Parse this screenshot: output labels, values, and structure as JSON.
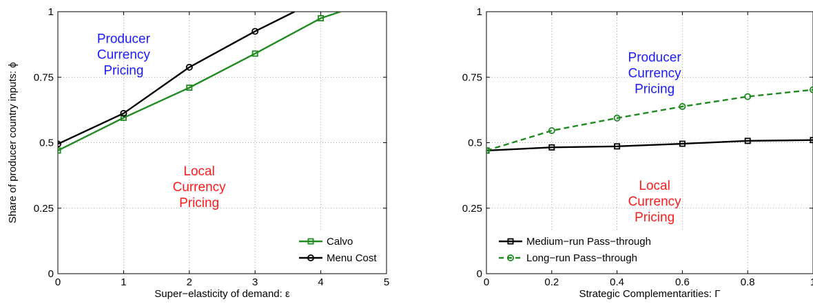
{
  "colors": {
    "green": "#1f8a1f",
    "black": "#000000",
    "blue": "#1a1aff",
    "red": "#ff1a1a",
    "grid": "#888888"
  },
  "chart_data": [
    {
      "type": "line",
      "xlabel": "Super−elasticity of demand: ε",
      "ylabel": "Share of producer country inputs:  ϕ",
      "xlim": [
        0,
        5
      ],
      "ylim": [
        0,
        1
      ],
      "xticks": [
        "0",
        "1",
        "2",
        "3",
        "4",
        "5"
      ],
      "yticks": [
        "0",
        "0.25",
        "0.5",
        "0.75",
        "1"
      ],
      "grid": "dotted",
      "legend_position": "bottom-right",
      "series": [
        {
          "name": "Calvo",
          "color": "green",
          "line": "solid",
          "marker": "square",
          "x": [
            0,
            1,
            2,
            3,
            4,
            4.3
          ],
          "y": [
            0.47,
            0.595,
            0.71,
            0.84,
            0.975,
            1.0
          ],
          "marker_x": [
            0,
            1,
            2,
            3,
            4
          ]
        },
        {
          "name": "Menu Cost",
          "color": "black",
          "line": "solid",
          "marker": "circle",
          "x": [
            0,
            1,
            2,
            3,
            3.6
          ],
          "y": [
            0.495,
            0.612,
            0.788,
            0.925,
            1.0
          ],
          "marker_x": [
            0,
            1,
            2,
            3
          ]
        }
      ],
      "annotations": [
        {
          "lines": [
            "Producer",
            "Currency",
            "Pricing"
          ],
          "color": "blue",
          "at": [
            1.0,
            0.88
          ]
        },
        {
          "lines": [
            "Local",
            "Currency",
            "Pricing"
          ],
          "color": "red",
          "at": [
            2.15,
            0.375
          ]
        }
      ]
    },
    {
      "type": "line",
      "xlabel": "Strategic Complementarities: Γ",
      "ylabel": "",
      "xlim": [
        0,
        1
      ],
      "ylim": [
        0,
        1
      ],
      "xticks": [
        "0",
        "0.2",
        "0.4",
        "0.6",
        "0.8",
        "1"
      ],
      "yticks": [
        "0",
        "0.25",
        "0.5",
        "0.75",
        "1"
      ],
      "grid": "dotted",
      "legend_position": "bottom-left",
      "series": [
        {
          "name": "Medium−run Pass−through",
          "color": "black",
          "line": "solid",
          "marker": "square",
          "x": [
            0,
            0.2,
            0.4,
            0.6,
            0.8,
            1.0
          ],
          "y": [
            0.47,
            0.482,
            0.486,
            0.496,
            0.507,
            0.51
          ],
          "marker_x": [
            0,
            0.2,
            0.4,
            0.6,
            0.8,
            1.0
          ]
        },
        {
          "name": "Long−run Pass−through",
          "color": "green",
          "line": "dashed",
          "marker": "circle",
          "x": [
            0,
            0.2,
            0.4,
            0.6,
            0.8,
            1.0
          ],
          "y": [
            0.47,
            0.546,
            0.594,
            0.638,
            0.676,
            0.702
          ],
          "marker_x": [
            0,
            0.2,
            0.4,
            0.6,
            0.8,
            1.0
          ]
        }
      ],
      "annotations": [
        {
          "lines": [
            "Producer",
            "Currency",
            "Pricing"
          ],
          "color": "blue",
          "at": [
            0.515,
            0.81
          ]
        },
        {
          "lines": [
            "Local",
            "Currency",
            "Pricing"
          ],
          "color": "red",
          "at": [
            0.515,
            0.32
          ]
        }
      ]
    }
  ]
}
